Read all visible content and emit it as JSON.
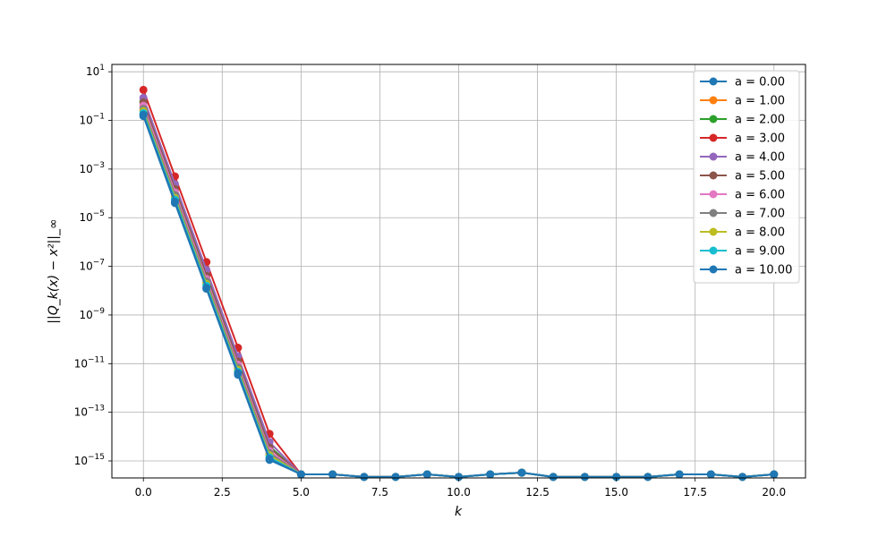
{
  "chart_data": {
    "type": "line",
    "xlabel": "k",
    "ylabel": "||Q_k(x) − x²||_∞",
    "y_scale": "log",
    "xlim": [
      -1,
      21
    ],
    "ylim": [
      2e-16,
      20
    ],
    "grid": true,
    "legend_position": "top-right",
    "x_ticks": [
      0.0,
      2.5,
      5.0,
      7.5,
      10.0,
      12.5,
      15.0,
      17.5,
      20.0
    ],
    "x_tick_labels": [
      "0.0",
      "2.5",
      "5.0",
      "7.5",
      "10.0",
      "12.5",
      "15.0",
      "17.5",
      "20.0"
    ],
    "y_tick_exponents": [
      1,
      -1,
      -3,
      -5,
      -7,
      -9,
      -11,
      -13,
      -15
    ],
    "x": [
      0,
      1,
      2,
      3,
      4,
      5,
      6,
      7,
      8,
      9,
      10,
      11,
      12,
      13,
      14,
      15,
      16,
      17,
      18,
      19,
      20
    ],
    "series": [
      {
        "name": "a = 0.00",
        "color": "#1f77b4",
        "values": [
          0.15,
          4e-05,
          1.2e-08,
          3.5e-12,
          1.1e-15,
          2.8e-16,
          2.8e-16,
          2.2e-16,
          2.2e-16,
          2.8e-16,
          2.2e-16,
          2.8e-16,
          3.3e-16,
          2.2e-16,
          2.2e-16,
          2.2e-16,
          2.2e-16,
          2.8e-16,
          2.8e-16,
          2.2e-16,
          2.8e-16
        ]
      },
      {
        "name": "a = 1.00",
        "color": "#ff7f0e",
        "values": [
          0.25,
          7e-05,
          2e-08,
          6e-12,
          1.8e-15,
          2.8e-16,
          2.8e-16,
          2.2e-16,
          2.2e-16,
          2.8e-16,
          2.2e-16,
          2.8e-16,
          3.3e-16,
          2.2e-16,
          2.2e-16,
          2.2e-16,
          2.2e-16,
          2.8e-16,
          2.8e-16,
          2.2e-16,
          2.8e-16
        ]
      },
      {
        "name": "a = 2.00",
        "color": "#2ca02c",
        "values": [
          0.6,
          0.00016,
          4.5e-08,
          1.4e-11,
          4e-15,
          2.8e-16,
          2.8e-16,
          2.2e-16,
          2.2e-16,
          2.8e-16,
          2.2e-16,
          2.8e-16,
          3.3e-16,
          2.2e-16,
          2.2e-16,
          2.2e-16,
          2.2e-16,
          2.8e-16,
          2.8e-16,
          2.2e-16,
          2.8e-16
        ]
      },
      {
        "name": "a = 3.00",
        "color": "#d62728",
        "values": [
          1.8,
          0.0005,
          1.5e-07,
          4.5e-11,
          1.3e-14,
          2.8e-16,
          2.8e-16,
          2.2e-16,
          2.2e-16,
          2.8e-16,
          2.2e-16,
          2.8e-16,
          3.3e-16,
          2.2e-16,
          2.2e-16,
          2.2e-16,
          2.2e-16,
          2.8e-16,
          2.8e-16,
          2.2e-16,
          2.8e-16
        ]
      },
      {
        "name": "a = 4.00",
        "color": "#9467bd",
        "values": [
          0.85,
          0.00024,
          7e-08,
          2e-11,
          6e-15,
          2.8e-16,
          2.8e-16,
          2.2e-16,
          2.2e-16,
          2.8e-16,
          2.2e-16,
          2.8e-16,
          3.3e-16,
          2.2e-16,
          2.2e-16,
          2.2e-16,
          2.2e-16,
          2.8e-16,
          2.8e-16,
          2.2e-16,
          2.8e-16
        ]
      },
      {
        "name": "a = 5.00",
        "color": "#8c564b",
        "values": [
          0.55,
          0.00015,
          4e-08,
          1.2e-11,
          3.5e-15,
          2.8e-16,
          2.8e-16,
          2.2e-16,
          2.2e-16,
          2.8e-16,
          2.2e-16,
          2.8e-16,
          3.3e-16,
          2.2e-16,
          2.2e-16,
          2.2e-16,
          2.2e-16,
          2.8e-16,
          2.8e-16,
          2.2e-16,
          2.8e-16
        ]
      },
      {
        "name": "a = 6.00",
        "color": "#e377c2",
        "values": [
          0.4,
          0.00011,
          3e-08,
          9e-12,
          2.6e-15,
          2.8e-16,
          2.8e-16,
          2.2e-16,
          2.2e-16,
          2.8e-16,
          2.2e-16,
          2.8e-16,
          3.3e-16,
          2.2e-16,
          2.2e-16,
          2.2e-16,
          2.2e-16,
          2.8e-16,
          2.8e-16,
          2.2e-16,
          2.8e-16
        ]
      },
      {
        "name": "a = 7.00",
        "color": "#7f7f7f",
        "values": [
          0.3,
          8.5e-05,
          2.4e-08,
          7e-12,
          2.1e-15,
          2.8e-16,
          2.8e-16,
          2.2e-16,
          2.2e-16,
          2.8e-16,
          2.2e-16,
          2.8e-16,
          3.3e-16,
          2.2e-16,
          2.2e-16,
          2.2e-16,
          2.2e-16,
          2.8e-16,
          2.8e-16,
          2.2e-16,
          2.8e-16
        ]
      },
      {
        "name": "a = 8.00",
        "color": "#bcbd22",
        "values": [
          0.24,
          6.5e-05,
          1.9e-08,
          5.5e-12,
          1.7e-15,
          2.8e-16,
          2.8e-16,
          2.2e-16,
          2.2e-16,
          2.8e-16,
          2.2e-16,
          2.8e-16,
          3.3e-16,
          2.2e-16,
          2.2e-16,
          2.2e-16,
          2.2e-16,
          2.8e-16,
          2.8e-16,
          2.2e-16,
          2.8e-16
        ]
      },
      {
        "name": "a = 9.00",
        "color": "#17becf",
        "values": [
          0.2,
          5.5e-05,
          1.6e-08,
          4.6e-12,
          1.4e-15,
          2.8e-16,
          2.8e-16,
          2.2e-16,
          2.2e-16,
          2.8e-16,
          2.2e-16,
          2.8e-16,
          3.3e-16,
          2.2e-16,
          2.2e-16,
          2.2e-16,
          2.2e-16,
          2.8e-16,
          2.8e-16,
          2.2e-16,
          2.8e-16
        ]
      },
      {
        "name": "a = 10.00",
        "color": "#1f77b4",
        "values": [
          0.17,
          4.5e-05,
          1.3e-08,
          4e-12,
          1.2e-15,
          2.8e-16,
          2.8e-16,
          2.2e-16,
          2.2e-16,
          2.8e-16,
          2.2e-16,
          2.8e-16,
          3.3e-16,
          2.2e-16,
          2.2e-16,
          2.2e-16,
          2.2e-16,
          2.8e-16,
          2.8e-16,
          2.2e-16,
          2.8e-16
        ]
      }
    ]
  }
}
